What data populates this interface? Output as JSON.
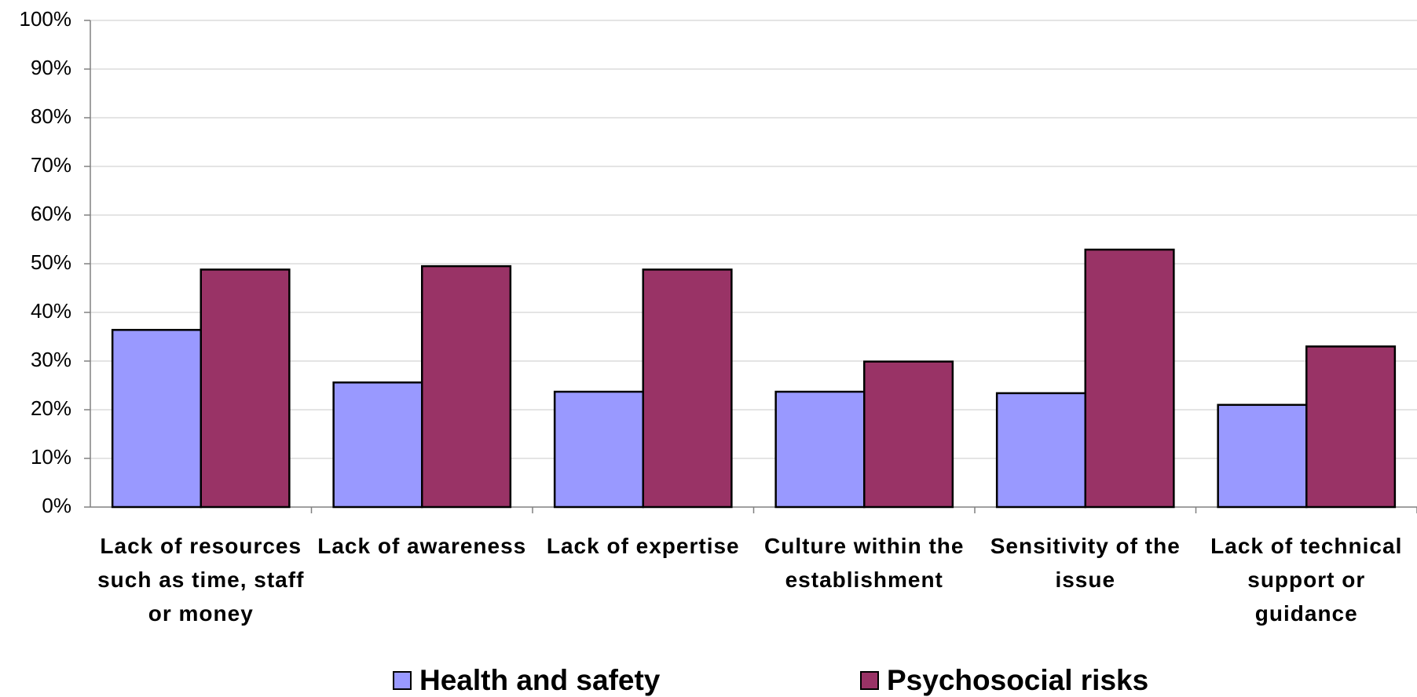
{
  "chart_data": {
    "type": "bar",
    "categories": [
      "Lack of resources such as time, staff or money",
      "Lack of awareness",
      "Lack of expertise",
      "Culture within the establishment",
      "Sensitivity of the issue",
      "Lack of technical support or guidance"
    ],
    "series": [
      {
        "name": "Health and safety",
        "color": "#9999ff",
        "values": [
          36.4,
          25.6,
          23.7,
          23.7,
          23.4,
          21.0
        ]
      },
      {
        "name": "Psychosocial risks",
        "color": "#993366",
        "values": [
          48.8,
          49.5,
          48.8,
          29.9,
          52.9,
          33.0
        ]
      }
    ],
    "ylim": [
      0,
      100
    ],
    "yticks": [
      {
        "value": 0,
        "label": "0%"
      },
      {
        "value": 10,
        "label": "10%"
      },
      {
        "value": 20,
        "label": "20%"
      },
      {
        "value": 30,
        "label": "30%"
      },
      {
        "value": 40,
        "label": "40%"
      },
      {
        "value": 50,
        "label": "50%"
      },
      {
        "value": 60,
        "label": "60%"
      },
      {
        "value": 70,
        "label": "70%"
      },
      {
        "value": 80,
        "label": "80%"
      },
      {
        "value": 90,
        "label": "90%"
      },
      {
        "value": 100,
        "label": "100%"
      }
    ],
    "grid": true,
    "legend": "bottom"
  }
}
